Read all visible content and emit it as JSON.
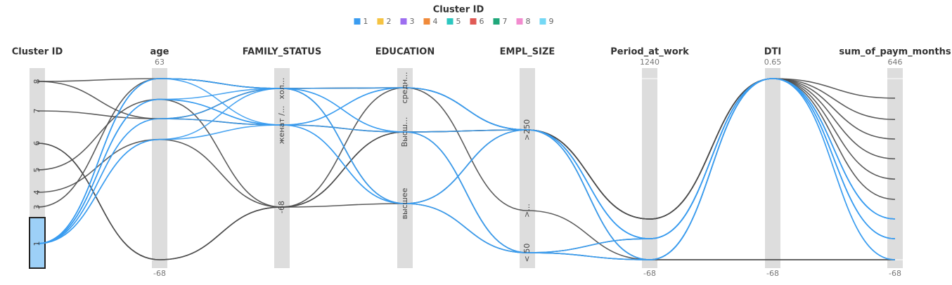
{
  "chart_data": {
    "type": "parallel",
    "legend_title": "Cluster ID",
    "legend": [
      {
        "name": "1",
        "color": "#3a9cf0"
      },
      {
        "name": "2",
        "color": "#f5c342"
      },
      {
        "name": "3",
        "color": "#9d6ef0"
      },
      {
        "name": "4",
        "color": "#f08a3a"
      },
      {
        "name": "5",
        "color": "#2cc7c0"
      },
      {
        "name": "6",
        "color": "#e05a55"
      },
      {
        "name": "7",
        "color": "#20a77a"
      },
      {
        "name": "8",
        "color": "#f28ccf"
      },
      {
        "name": "9",
        "color": "#74d8f5"
      }
    ],
    "selected": "1",
    "other_color": "#4a4a4a",
    "axes": [
      {
        "name": "Cluster ID",
        "kind": "category",
        "categories": [
          "8",
          "7",
          "6",
          "5",
          "4",
          "3",
          "1"
        ]
      },
      {
        "name": "age",
        "kind": "numeric",
        "ylim": [
          -68,
          63
        ],
        "yticks": [
          -68,
          63
        ]
      },
      {
        "name": "FAMILY_STATUS",
        "kind": "category",
        "categories": [
          "хол...",
          "женат /...",
          "-68"
        ]
      },
      {
        "name": "EDUCATION",
        "kind": "category",
        "categories": [
          "средн...",
          "Высш...",
          "высшее"
        ]
      },
      {
        "name": "EMPL_SIZE",
        "kind": "category",
        "categories": [
          ">250",
          ">...",
          "< 50"
        ]
      },
      {
        "name": "Period_at_work",
        "kind": "numeric",
        "ylim": [
          -68,
          1240
        ],
        "yticks": [
          -68,
          1240
        ]
      },
      {
        "name": "DTI",
        "kind": "numeric",
        "ylim": [
          -68,
          0.65
        ],
        "yticks": [
          -68,
          0.65
        ]
      },
      {
        "name": "sum_of_paym_months",
        "kind": "numeric",
        "ylim": [
          -68,
          646
        ],
        "yticks": [
          -68,
          646
        ]
      }
    ],
    "lines": [
      [
        "8",
        63,
        "хол...",
        "средн...",
        ">250",
        226,
        0.65,
        569
      ],
      [
        "7",
        34,
        "женат /...",
        "Высш...",
        ">250",
        226,
        0.65,
        485
      ],
      [
        "6",
        -68,
        "-68",
        "высшее",
        ">250",
        226,
        0.65,
        408
      ],
      [
        "5",
        48,
        "-68",
        "средн...",
        ">250",
        226,
        0.65,
        330
      ],
      [
        "4",
        19,
        "-68",
        "Высш...",
        ">250",
        -68,
        0.65,
        250
      ],
      [
        "3",
        63,
        "хол...",
        "высшее",
        "< 50",
        84,
        0.65,
        170
      ],
      [
        "6",
        -68,
        "-68",
        "Высш...",
        "< 50",
        -68,
        -68,
        -68
      ],
      [
        "8",
        34,
        "хол...",
        "средн...",
        ">...",
        -68,
        -68,
        -68
      ],
      [
        "1",
        63,
        "хол...",
        "средн...",
        ">250",
        84,
        0.65,
        93
      ],
      [
        "1",
        48,
        "женат /...",
        "Высш...",
        ">250",
        -68,
        0.65,
        15
      ],
      [
        "1",
        34,
        "хол...",
        "высшее",
        "< 50",
        84,
        0.65,
        -68
      ],
      [
        "1",
        19,
        "женат /...",
        "средн...",
        ">250",
        84,
        0.65,
        93
      ],
      [
        "1",
        63,
        "женат /...",
        "высшее",
        "< 50",
        -68,
        0.65,
        15
      ],
      [
        "1",
        48,
        "хол...",
        "Высш...",
        "< 50",
        84,
        0.65,
        93
      ],
      [
        "1",
        34,
        "женат /...",
        "средн...",
        ">250",
        -68,
        0.65,
        15
      ],
      [
        "1",
        63,
        "хол...",
        "высшее",
        ">250",
        84,
        0.65,
        -68
      ],
      [
        "1",
        19,
        "хол...",
        "Высш...",
        "< 50",
        -68,
        0.65,
        93
      ],
      [
        "1",
        48,
        "женат /...",
        "высшее",
        ">250",
        84,
        0.65,
        15
      ]
    ]
  }
}
